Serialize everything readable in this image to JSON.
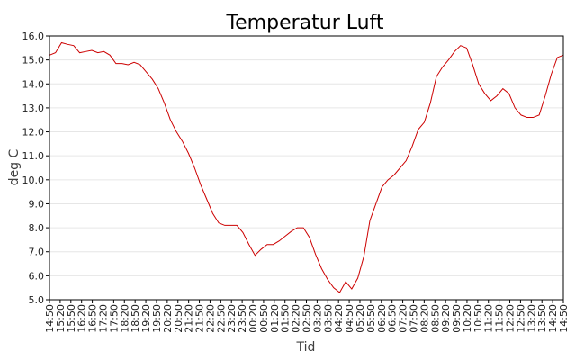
{
  "chart_data": {
    "type": "line",
    "title": "Temperatur Luft",
    "xlabel": "Tid",
    "ylabel": "deg C",
    "ylim": [
      5.0,
      16.0
    ],
    "yticks": [
      5.0,
      6.0,
      7.0,
      8.0,
      9.0,
      10.0,
      11.0,
      12.0,
      13.0,
      14.0,
      15.0,
      16.0
    ],
    "grid": true,
    "legend": "none",
    "line_color": "#cc0000",
    "x_tick_labels": [
      "14:50",
      "15:20",
      "15:50",
      "16:20",
      "16:50",
      "17:20",
      "17:50",
      "18:20",
      "18:50",
      "19:20",
      "19:50",
      "20:20",
      "20:50",
      "21:20",
      "21:50",
      "22:20",
      "22:50",
      "23:20",
      "23:50",
      "00:20",
      "00:50",
      "01:20",
      "01:50",
      "02:20",
      "02:50",
      "03:20",
      "03:50",
      "04:20",
      "04:50",
      "05:20",
      "05:50",
      "06:20",
      "06:50",
      "07:20",
      "07:50",
      "08:20",
      "08:50",
      "09:20",
      "09:50",
      "10:20",
      "10:50",
      "11:20",
      "11:50",
      "12:20",
      "12:50",
      "13:20",
      "13:50",
      "14:20",
      "14:50"
    ],
    "series": [
      {
        "values": [
          15.2,
          15.3,
          15.72,
          15.65,
          15.6,
          15.3,
          15.35,
          15.4,
          15.3,
          15.35,
          15.2,
          14.85,
          14.85,
          14.8,
          14.9,
          14.8,
          14.5,
          14.2,
          13.8,
          13.2,
          12.5,
          12.0,
          11.6,
          11.1,
          10.5,
          9.8,
          9.2,
          8.6,
          8.2,
          8.1,
          8.1,
          8.1,
          7.8,
          7.3,
          6.85,
          7.1,
          7.3,
          7.3,
          7.45,
          7.65,
          7.85,
          8.0,
          8.0,
          7.6,
          6.9,
          6.3,
          5.85,
          5.5,
          5.3,
          5.75,
          5.45,
          5.9,
          6.8,
          8.3,
          9.0,
          9.7,
          10.0,
          10.2,
          10.5,
          10.8,
          11.4,
          12.1,
          12.4,
          13.2,
          14.3,
          14.7,
          15.0,
          15.35,
          15.6,
          15.5,
          14.8,
          14.0,
          13.6,
          13.3,
          13.5,
          13.8,
          13.6,
          13.0,
          12.7,
          12.6,
          12.6,
          12.7,
          13.5,
          14.4,
          15.1,
          15.2
        ]
      }
    ]
  }
}
